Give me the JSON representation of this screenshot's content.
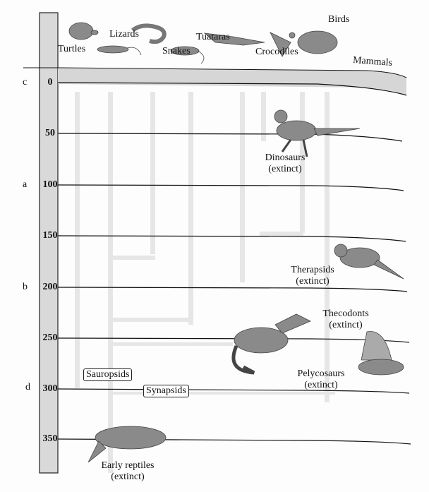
{
  "groups_top": {
    "turtles": "Turtles",
    "lizards": "Lizards",
    "snakes": "Snakes",
    "tuataras": "Tuataras",
    "crocodiles": "Crocodiles",
    "birds": "Birds",
    "mammals": "Mammals"
  },
  "timeline": {
    "ticks": [
      "0",
      "50",
      "100",
      "150",
      "200",
      "250",
      "300",
      "350"
    ]
  },
  "side_letters": {
    "c": "c",
    "a": "a",
    "b": "b",
    "d": "d"
  },
  "extinct_groups": {
    "dinosaurs": [
      "Dinosaurs",
      "(extinct)"
    ],
    "therapsids": [
      "Therapsids",
      "(extinct)"
    ],
    "thecodonts": [
      "Thecodonts",
      "(extinct)"
    ],
    "pelycosaurs": [
      "Pelycosaurs",
      "(extinct)"
    ],
    "early_reptiles": [
      "Early reptiles",
      "(extinct)"
    ]
  },
  "clades": {
    "sauropsids": "Sauropsids",
    "synapsids": "Synapsids"
  }
}
